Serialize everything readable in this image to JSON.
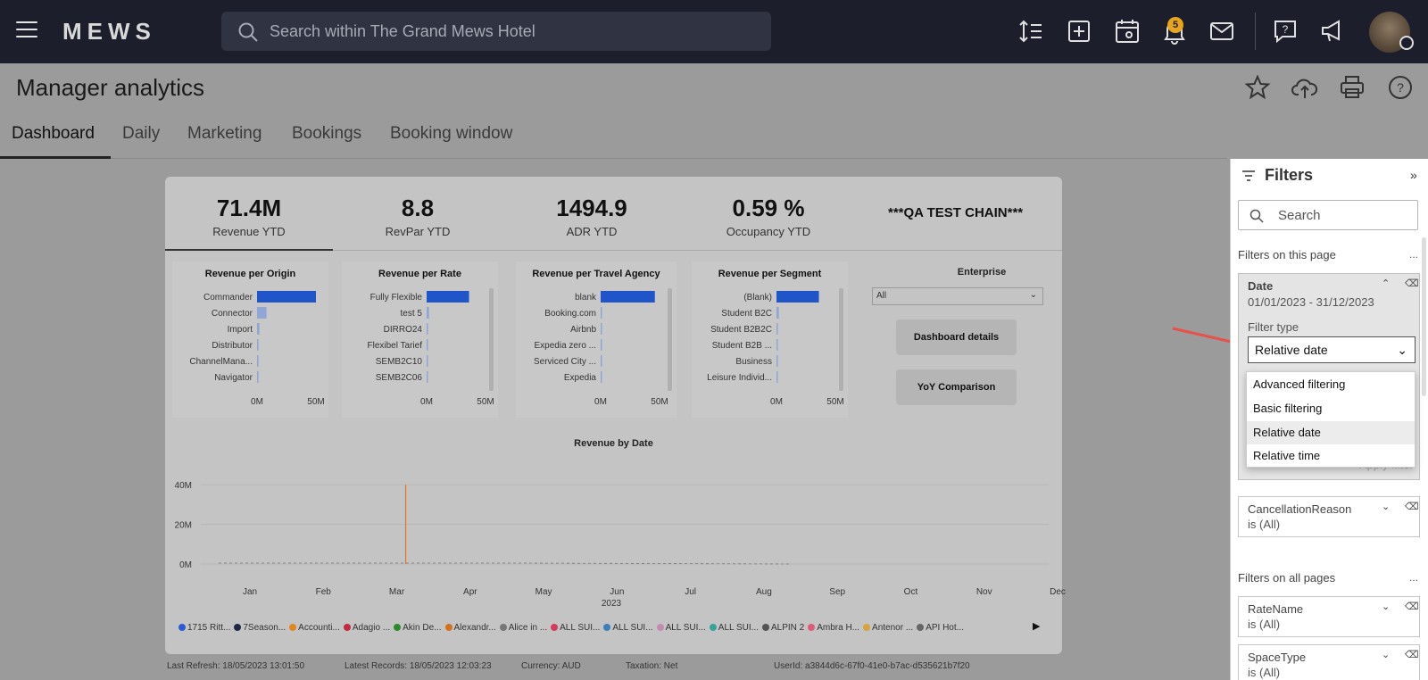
{
  "topbar": {
    "logo": "MEWS",
    "search_placeholder": "Search within The Grand Mews Hotel",
    "notification_count": "5",
    "icons": [
      "menu-icon",
      "search-icon",
      "sort-icon",
      "add-icon",
      "calendar-view-icon",
      "bell-icon",
      "mail-icon",
      "help-chat-icon",
      "announcement-icon",
      "avatar"
    ]
  },
  "page": {
    "title": "Manager analytics",
    "header_icons": [
      "star-icon",
      "cloud-upload-icon",
      "print-icon",
      "help-icon"
    ]
  },
  "tabs": [
    {
      "label": "Dashboard",
      "active": true
    },
    {
      "label": "Daily",
      "active": false
    },
    {
      "label": "Marketing",
      "active": false
    },
    {
      "label": "Bookings",
      "active": false
    },
    {
      "label": "Booking window",
      "active": false
    }
  ],
  "kpis": [
    {
      "value": "71.4M",
      "label": "Revenue YTD"
    },
    {
      "value": "8.8",
      "label": "RevPar YTD"
    },
    {
      "value": "1494.9",
      "label": "ADR YTD"
    },
    {
      "value": "0.59 %",
      "label": "Occupancy YTD"
    }
  ],
  "chain_name": "***QA TEST CHAIN***",
  "enterprise": {
    "title": "Enterprise",
    "selected": "All"
  },
  "buttons": {
    "dashboard_details": "Dashboard details",
    "yoy": "YoY Comparison"
  },
  "chart_data": [
    {
      "type": "bar",
      "title": "Revenue per Origin",
      "categories": [
        "Commander",
        "Connector",
        "Import",
        "Distributor",
        "ChannelMana...",
        "Navigator"
      ],
      "values": [
        50,
        8,
        2,
        0.5,
        0.3,
        0.2
      ],
      "xticks": [
        "0M",
        "50M"
      ],
      "xlim": [
        0,
        60
      ]
    },
    {
      "type": "bar",
      "title": "Revenue per Rate",
      "categories": [
        "Fully Flexible",
        "test 5",
        "DIRRO24",
        "Flexibel Tarief",
        "SEMB2C10",
        "SEMB2C06"
      ],
      "values": [
        36,
        2,
        1,
        0.5,
        0.5,
        0.5
      ],
      "xticks": [
        "0M",
        "50M"
      ],
      "xlim": [
        0,
        60
      ]
    },
    {
      "type": "bar",
      "title": "Revenue per Travel Agency",
      "categories": [
        "blank",
        "Booking.com",
        "Airbnb",
        "Expedia zero ...",
        "Serviced City ...",
        "Expedia"
      ],
      "values": [
        46,
        0.5,
        0.3,
        0.2,
        0.2,
        0.2
      ],
      "xticks": [
        "0M",
        "50M"
      ],
      "xlim": [
        0,
        60
      ]
    },
    {
      "type": "bar",
      "title": "Revenue per Segment",
      "categories": [
        "(Blank)",
        "Student B2C",
        "Student B2B2C",
        "Student B2B ...",
        "Business",
        "Leisure Individ..."
      ],
      "values": [
        36,
        2,
        1,
        0.5,
        0.3,
        0.2
      ],
      "xticks": [
        "0M",
        "50M"
      ],
      "xlim": [
        0,
        60
      ]
    },
    {
      "type": "line",
      "title": "Revenue by Date",
      "x": [
        "Jan",
        "Feb",
        "Mar",
        "Apr",
        "May",
        "Jun",
        "Jul",
        "Aug",
        "Sep",
        "Oct",
        "Nov",
        "Dec"
      ],
      "xlabel": "2023",
      "yticks": [
        "0M",
        "20M",
        "40M"
      ],
      "ylim": [
        0,
        45
      ],
      "spike": {
        "x": "Mar",
        "value": 40
      }
    }
  ],
  "legend": [
    {
      "name": "1715 Ritt...",
      "color": "#2a5bd7"
    },
    {
      "name": "7Season...",
      "color": "#1f2a44"
    },
    {
      "name": "Accounti...",
      "color": "#e3861d"
    },
    {
      "name": "Adagio ...",
      "color": "#c42a3f"
    },
    {
      "name": "Akin De...",
      "color": "#2b8a2b"
    },
    {
      "name": "Alexandr...",
      "color": "#d4721c"
    },
    {
      "name": "Alice in ...",
      "color": "#777777"
    },
    {
      "name": "ALL SUI...",
      "color": "#d63a5a"
    },
    {
      "name": "ALL SUI...",
      "color": "#3d7fb8"
    },
    {
      "name": "ALL SUI...",
      "color": "#c48bb0"
    },
    {
      "name": "ALL SUI...",
      "color": "#39a39a"
    },
    {
      "name": "ALPIN 2",
      "color": "#555555"
    },
    {
      "name": "Ambra H...",
      "color": "#e05a78"
    },
    {
      "name": "Antenor ...",
      "color": "#d6a33c"
    },
    {
      "name": "API Hot...",
      "color": "#666666"
    }
  ],
  "status": {
    "refresh": "Last Refresh: 18/05/2023 13:01:50",
    "records": "Latest Records: 18/05/2023 12:03:23",
    "currency": "Currency: AUD",
    "taxation": "Taxation: Net",
    "user": "UserId: a3844d6c-67f0-41e0-b7ac-d535621b7f20"
  },
  "filters": {
    "title": "Filters",
    "search_placeholder": "Search",
    "on_page_label": "Filters on this page",
    "all_pages_label": "Filters on all pages",
    "more": "...",
    "date": {
      "name": "Date",
      "value": "01/01/2023 - 31/12/2023",
      "filter_type_label": "Filter type",
      "selected_type": "Relative date",
      "apply": "Apply filter"
    },
    "dropdown_options": [
      "Advanced filtering",
      "Basic filtering",
      "Relative date",
      "Relative time"
    ],
    "cancellation": {
      "name": "CancellationReason",
      "value": "is (All)"
    },
    "ratename": {
      "name": "RateName",
      "value": "is (All)"
    },
    "spacetype": {
      "name": "SpaceType",
      "value": "is (All)"
    }
  }
}
